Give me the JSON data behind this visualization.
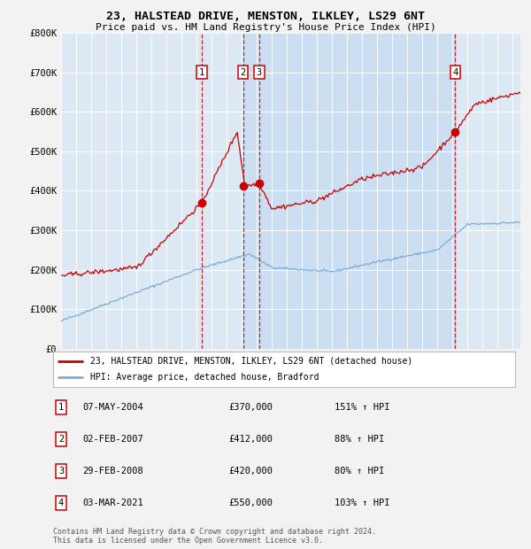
{
  "title": "23, HALSTEAD DRIVE, MENSTON, ILKLEY, LS29 6NT",
  "subtitle": "Price paid vs. HM Land Registry's House Price Index (HPI)",
  "ylim": [
    0,
    800000
  ],
  "yticks": [
    0,
    100000,
    200000,
    300000,
    400000,
    500000,
    600000,
    700000,
    800000
  ],
  "ytick_labels": [
    "£0",
    "£100K",
    "£200K",
    "£300K",
    "£400K",
    "£500K",
    "£600K",
    "£700K",
    "£800K"
  ],
  "fig_bg_color": "#f2f2f2",
  "plot_bg_color": "#dce9f5",
  "grid_color": "#ffffff",
  "red_line_color": "#cc0000",
  "blue_line_color": "#7aadd4",
  "dashed_vline_color": "#cc0000",
  "sale_marker_color": "#cc0000",
  "purchases": [
    {
      "label": "1",
      "date_x": 2004.35,
      "price": 370000
    },
    {
      "label": "2",
      "date_x": 2007.08,
      "price": 412000
    },
    {
      "label": "3",
      "date_x": 2008.16,
      "price": 420000
    },
    {
      "label": "4",
      "date_x": 2021.17,
      "price": 550000
    }
  ],
  "legend_entries": [
    {
      "label": "23, HALSTEAD DRIVE, MENSTON, ILKLEY, LS29 6NT (detached house)",
      "color": "#cc0000"
    },
    {
      "label": "HPI: Average price, detached house, Bradford",
      "color": "#7aadd4"
    }
  ],
  "table_rows": [
    {
      "num": "1",
      "date": "07-MAY-2004",
      "price": "£370,000",
      "hpi": "151% ↑ HPI"
    },
    {
      "num": "2",
      "date": "02-FEB-2007",
      "price": "£412,000",
      "hpi": "88% ↑ HPI"
    },
    {
      "num": "3",
      "date": "29-FEB-2008",
      "price": "£420,000",
      "hpi": "80% ↑ HPI"
    },
    {
      "num": "4",
      "date": "03-MAR-2021",
      "price": "£550,000",
      "hpi": "103% ↑ HPI"
    }
  ],
  "footnote": "Contains HM Land Registry data © Crown copyright and database right 2024.\nThis data is licensed under the Open Government Licence v3.0.",
  "xmin": 1995.0,
  "xmax": 2025.5,
  "shade_start": 2007.08,
  "shade_end": 2021.17
}
